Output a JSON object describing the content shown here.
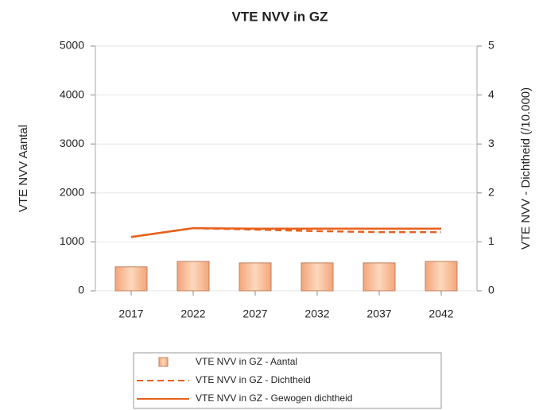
{
  "chart_data": {
    "type": "bar-line",
    "title": "VTE NVV in GZ",
    "ylabel": "VTE NVV Aantal",
    "y2label": "VTE NVV - Dichtheid (/10.000)",
    "categories": [
      "2017",
      "2022",
      "2027",
      "2032",
      "2037",
      "2042"
    ],
    "series": [
      {
        "name": "VTE NVV in GZ - Aantal",
        "type": "bar",
        "color": "#f7bf98",
        "values": [
          490,
          600,
          570,
          570,
          570,
          600
        ]
      },
      {
        "name": "VTE NVV in GZ - Dichtheid",
        "type": "line",
        "dash": true,
        "axis": "y2",
        "color": "#e8601c",
        "values": [
          1.1,
          1.28,
          1.25,
          1.22,
          1.2,
          1.2
        ]
      },
      {
        "name": "VTE NVV in GZ - Gewogen dichtheid",
        "type": "line",
        "dash": false,
        "axis": "y2",
        "color": "#e8601c",
        "values": [
          1.1,
          1.28,
          1.27,
          1.27,
          1.27,
          1.27
        ]
      }
    ],
    "ylim": [
      0,
      5000
    ],
    "yticks": [
      0,
      1000,
      2000,
      3000,
      4000,
      5000
    ],
    "y2lim": [
      0,
      5
    ],
    "y2ticks": [
      0,
      1,
      2,
      3,
      4,
      5
    ],
    "grid": true
  }
}
